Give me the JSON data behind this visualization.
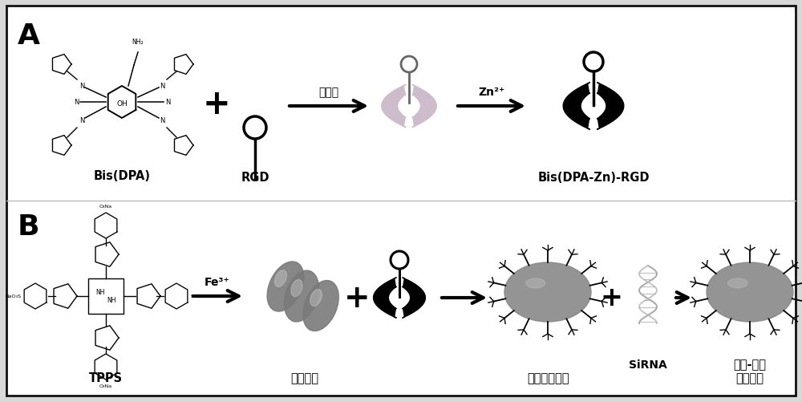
{
  "bg_color": "#d8d8d8",
  "panel_bg": "#ffffff",
  "border_color": "#111111",
  "text_color": "#000000",
  "panel_A_label": "A",
  "panel_B_label": "B",
  "label_BIS_DPA": "Bis(DPA)",
  "label_RGD": "RGD",
  "label_coupling": "偶联剂",
  "label_Zn": "Zn²⁺",
  "label_Bis_DPA_Zn_RGD": "Bis(DPA-Zn)-RGD",
  "label_TPPS": "TPPS",
  "label_Fe": "Fe³⁺",
  "label_nanoparticles": "纳米颗粒",
  "label_targeted": "靶向纳米颗粒",
  "label_SiRNA": "SiRNA",
  "label_final_1": "金属-博唏",
  "label_final_2": "纳米颗粒",
  "arrow_color": "#111111",
  "plus_color": "#000000",
  "nanoparticle_color": "#888888"
}
